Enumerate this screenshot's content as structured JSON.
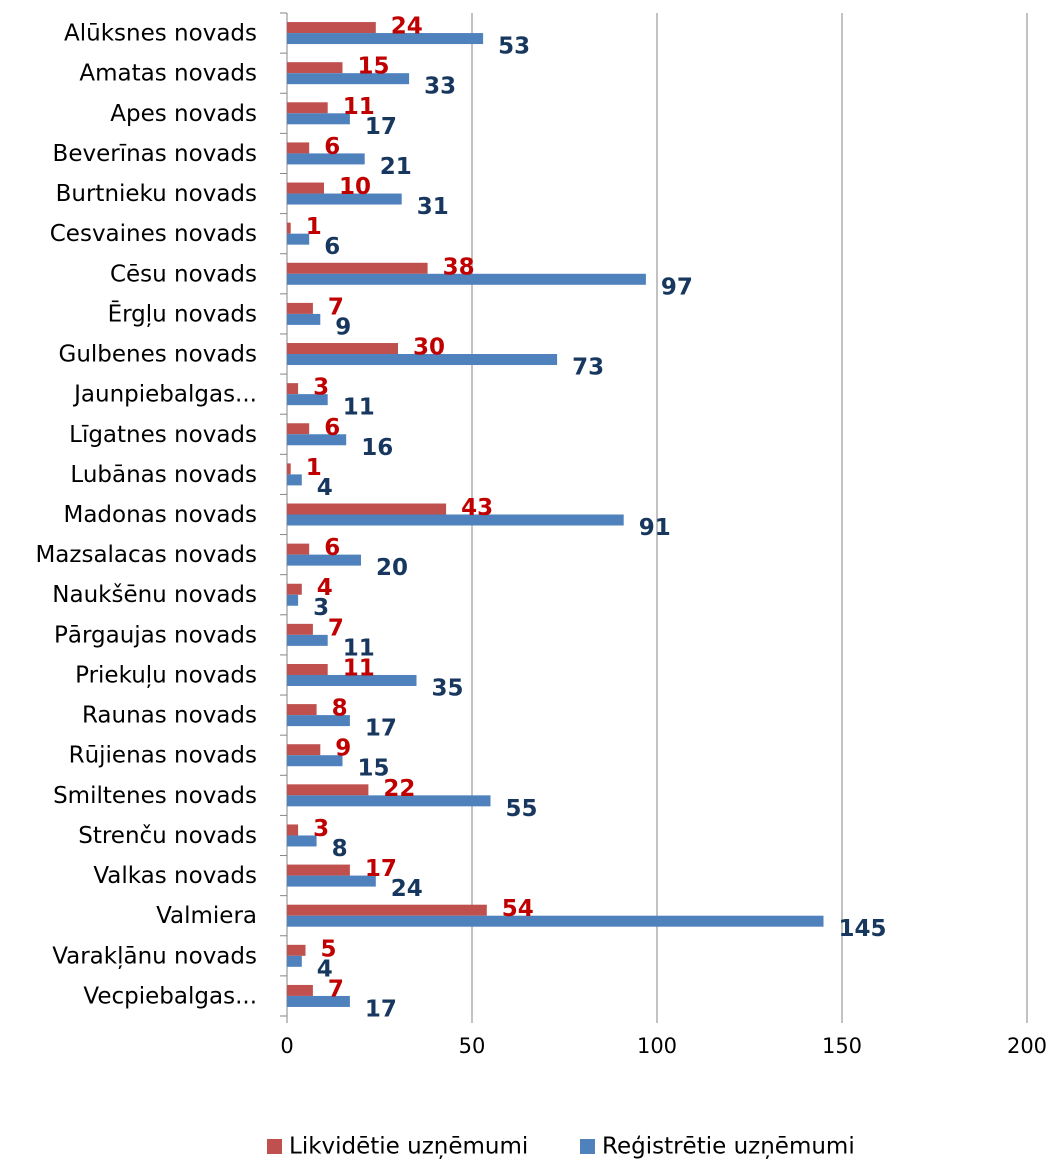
{
  "chart_data": {
    "type": "bar",
    "orientation": "horizontal",
    "categories": [
      "Alūksnes novads",
      "Amatas novads",
      "Apes novads",
      "Beverīnas novads",
      "Burtnieku novads",
      "Cesvaines novads",
      "Cēsu novads",
      "Ērgļu novads",
      "Gulbenes novads",
      "Jaunpiebalgas...",
      "Līgatnes novads",
      "Lubānas novads",
      "Madonas novads",
      "Mazsalacas novads",
      "Naukšēnu novads",
      "Pārgaujas novads",
      "Priekuļu novads",
      "Raunas novads",
      "Rūjienas novads",
      "Smiltenes novads",
      "Strenču novads",
      "Valkas novads",
      "Valmiera",
      "Varakļānu novads",
      "Vecpiebalgas..."
    ],
    "series": [
      {
        "name": "Likvidētie uzņēmumi",
        "color": "#C0504D",
        "label_color": "#C00000",
        "values": [
          24,
          15,
          11,
          6,
          10,
          1,
          38,
          7,
          30,
          3,
          6,
          1,
          43,
          6,
          4,
          7,
          11,
          8,
          9,
          22,
          3,
          17,
          54,
          5,
          7
        ]
      },
      {
        "name": "Reģistrētie uzņēmumi",
        "color": "#4F81BD",
        "label_color": "#17375E",
        "values": [
          53,
          33,
          17,
          21,
          31,
          6,
          97,
          9,
          73,
          11,
          16,
          4,
          91,
          20,
          3,
          11,
          35,
          17,
          15,
          55,
          8,
          24,
          145,
          4,
          17
        ]
      }
    ],
    "xlim": [
      0,
      200
    ],
    "xticks": [
      "0",
      "50",
      "100",
      "150",
      "200"
    ],
    "grid": true,
    "legend_position": "bottom"
  }
}
